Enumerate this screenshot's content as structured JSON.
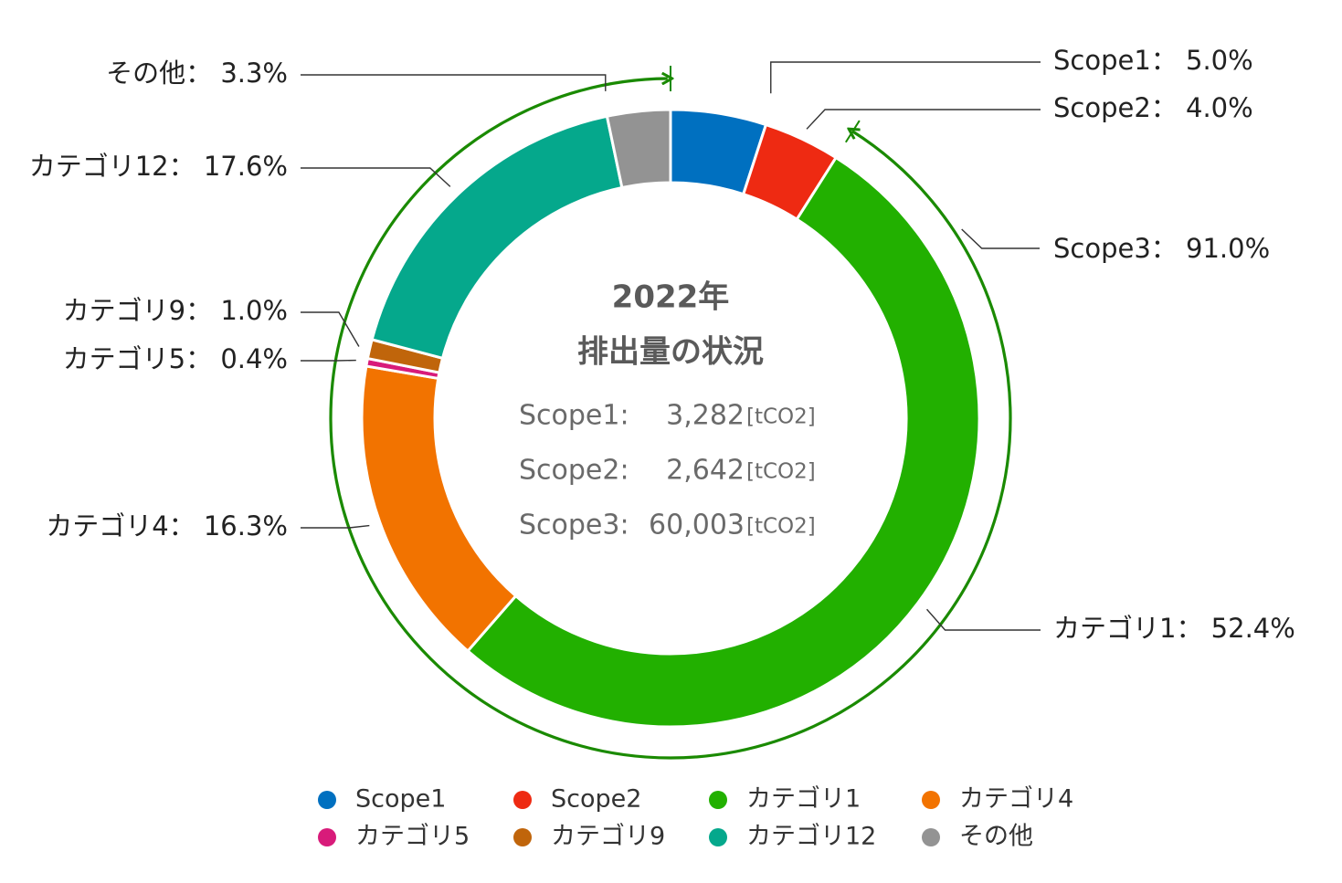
{
  "chart_data": {
    "type": "pie",
    "variant": "donut",
    "slices": [
      {
        "label": "Scope1",
        "value": 5.0,
        "value_label": "5.0%",
        "color": "#0070c0"
      },
      {
        "label": "Scope2",
        "value": 4.0,
        "value_label": "4.0%",
        "color": "#ee2a12"
      },
      {
        "label": "カテゴリ1",
        "value": 52.4,
        "value_label": "52.4%",
        "color": "#22b000"
      },
      {
        "label": "カテゴリ4",
        "value": 16.3,
        "value_label": "16.3%",
        "color": "#f27300"
      },
      {
        "label": "カテゴリ5",
        "value": 0.4,
        "value_label": "0.4%",
        "color": "#d81b7a"
      },
      {
        "label": "カテゴリ9",
        "value": 1.0,
        "value_label": "1.0%",
        "color": "#c0650b"
      },
      {
        "label": "カテゴリ12",
        "value": 17.6,
        "value_label": "17.6%",
        "color": "#05a88c"
      },
      {
        "label": "その他",
        "value": 3.3,
        "value_label": "3.3%",
        "color": "#939393"
      }
    ],
    "group_annotation": {
      "label": "Scope3",
      "value": 91.0,
      "value_label": "91.0%",
      "color": "#1a8a00"
    },
    "center": {
      "title_line1": "2022年",
      "title_line2": "排出量の状況",
      "lines": [
        {
          "label": "Scope1:",
          "value": "3,282",
          "unit": "[tCO2]"
        },
        {
          "label": "Scope2:",
          "value": "2,642",
          "unit": "[tCO2]"
        },
        {
          "label": "Scope3:",
          "value": "60,003",
          "unit": "[tCO2]"
        }
      ]
    },
    "legend": {
      "placement": "bottom",
      "entries": [
        "Scope1",
        "Scope2",
        "カテゴリ1",
        "カテゴリ4",
        "カテゴリ5",
        "カテゴリ9",
        "カテゴリ12",
        "その他"
      ]
    },
    "separator": "："
  }
}
